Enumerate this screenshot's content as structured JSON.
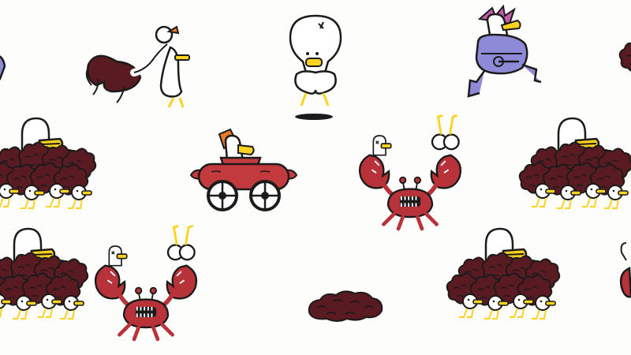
{
  "scene": {
    "background": "#fdfdfb",
    "palette": {
      "outline": "#1b1b1b",
      "body": "#ffffff",
      "beak": "#ffd21e",
      "feather": "#5a1a22",
      "crab": "#b8323a",
      "car": "#c23a3d",
      "punk_hair": "#c45bb0",
      "punk_outfit": "#8d8ad8",
      "sauce": "#e8782a"
    },
    "sprites": [
      {
        "name": "goose-wrestling-ostrich",
        "icon": "goose-ostrich-icon"
      },
      {
        "name": "balloon-goose",
        "icon": "balloon-goose-icon"
      },
      {
        "name": "punk-goose-running",
        "icon": "punk-goose-icon"
      },
      {
        "name": "ostrich-goose-cluster",
        "icon": "ostrich-cluster-icon"
      },
      {
        "name": "hotdog-car-goose",
        "icon": "hotdog-car-icon"
      },
      {
        "name": "crab-with-goose",
        "icon": "crab-goose-icon"
      },
      {
        "name": "feather-pile",
        "icon": "feather-pile-icon"
      }
    ]
  }
}
